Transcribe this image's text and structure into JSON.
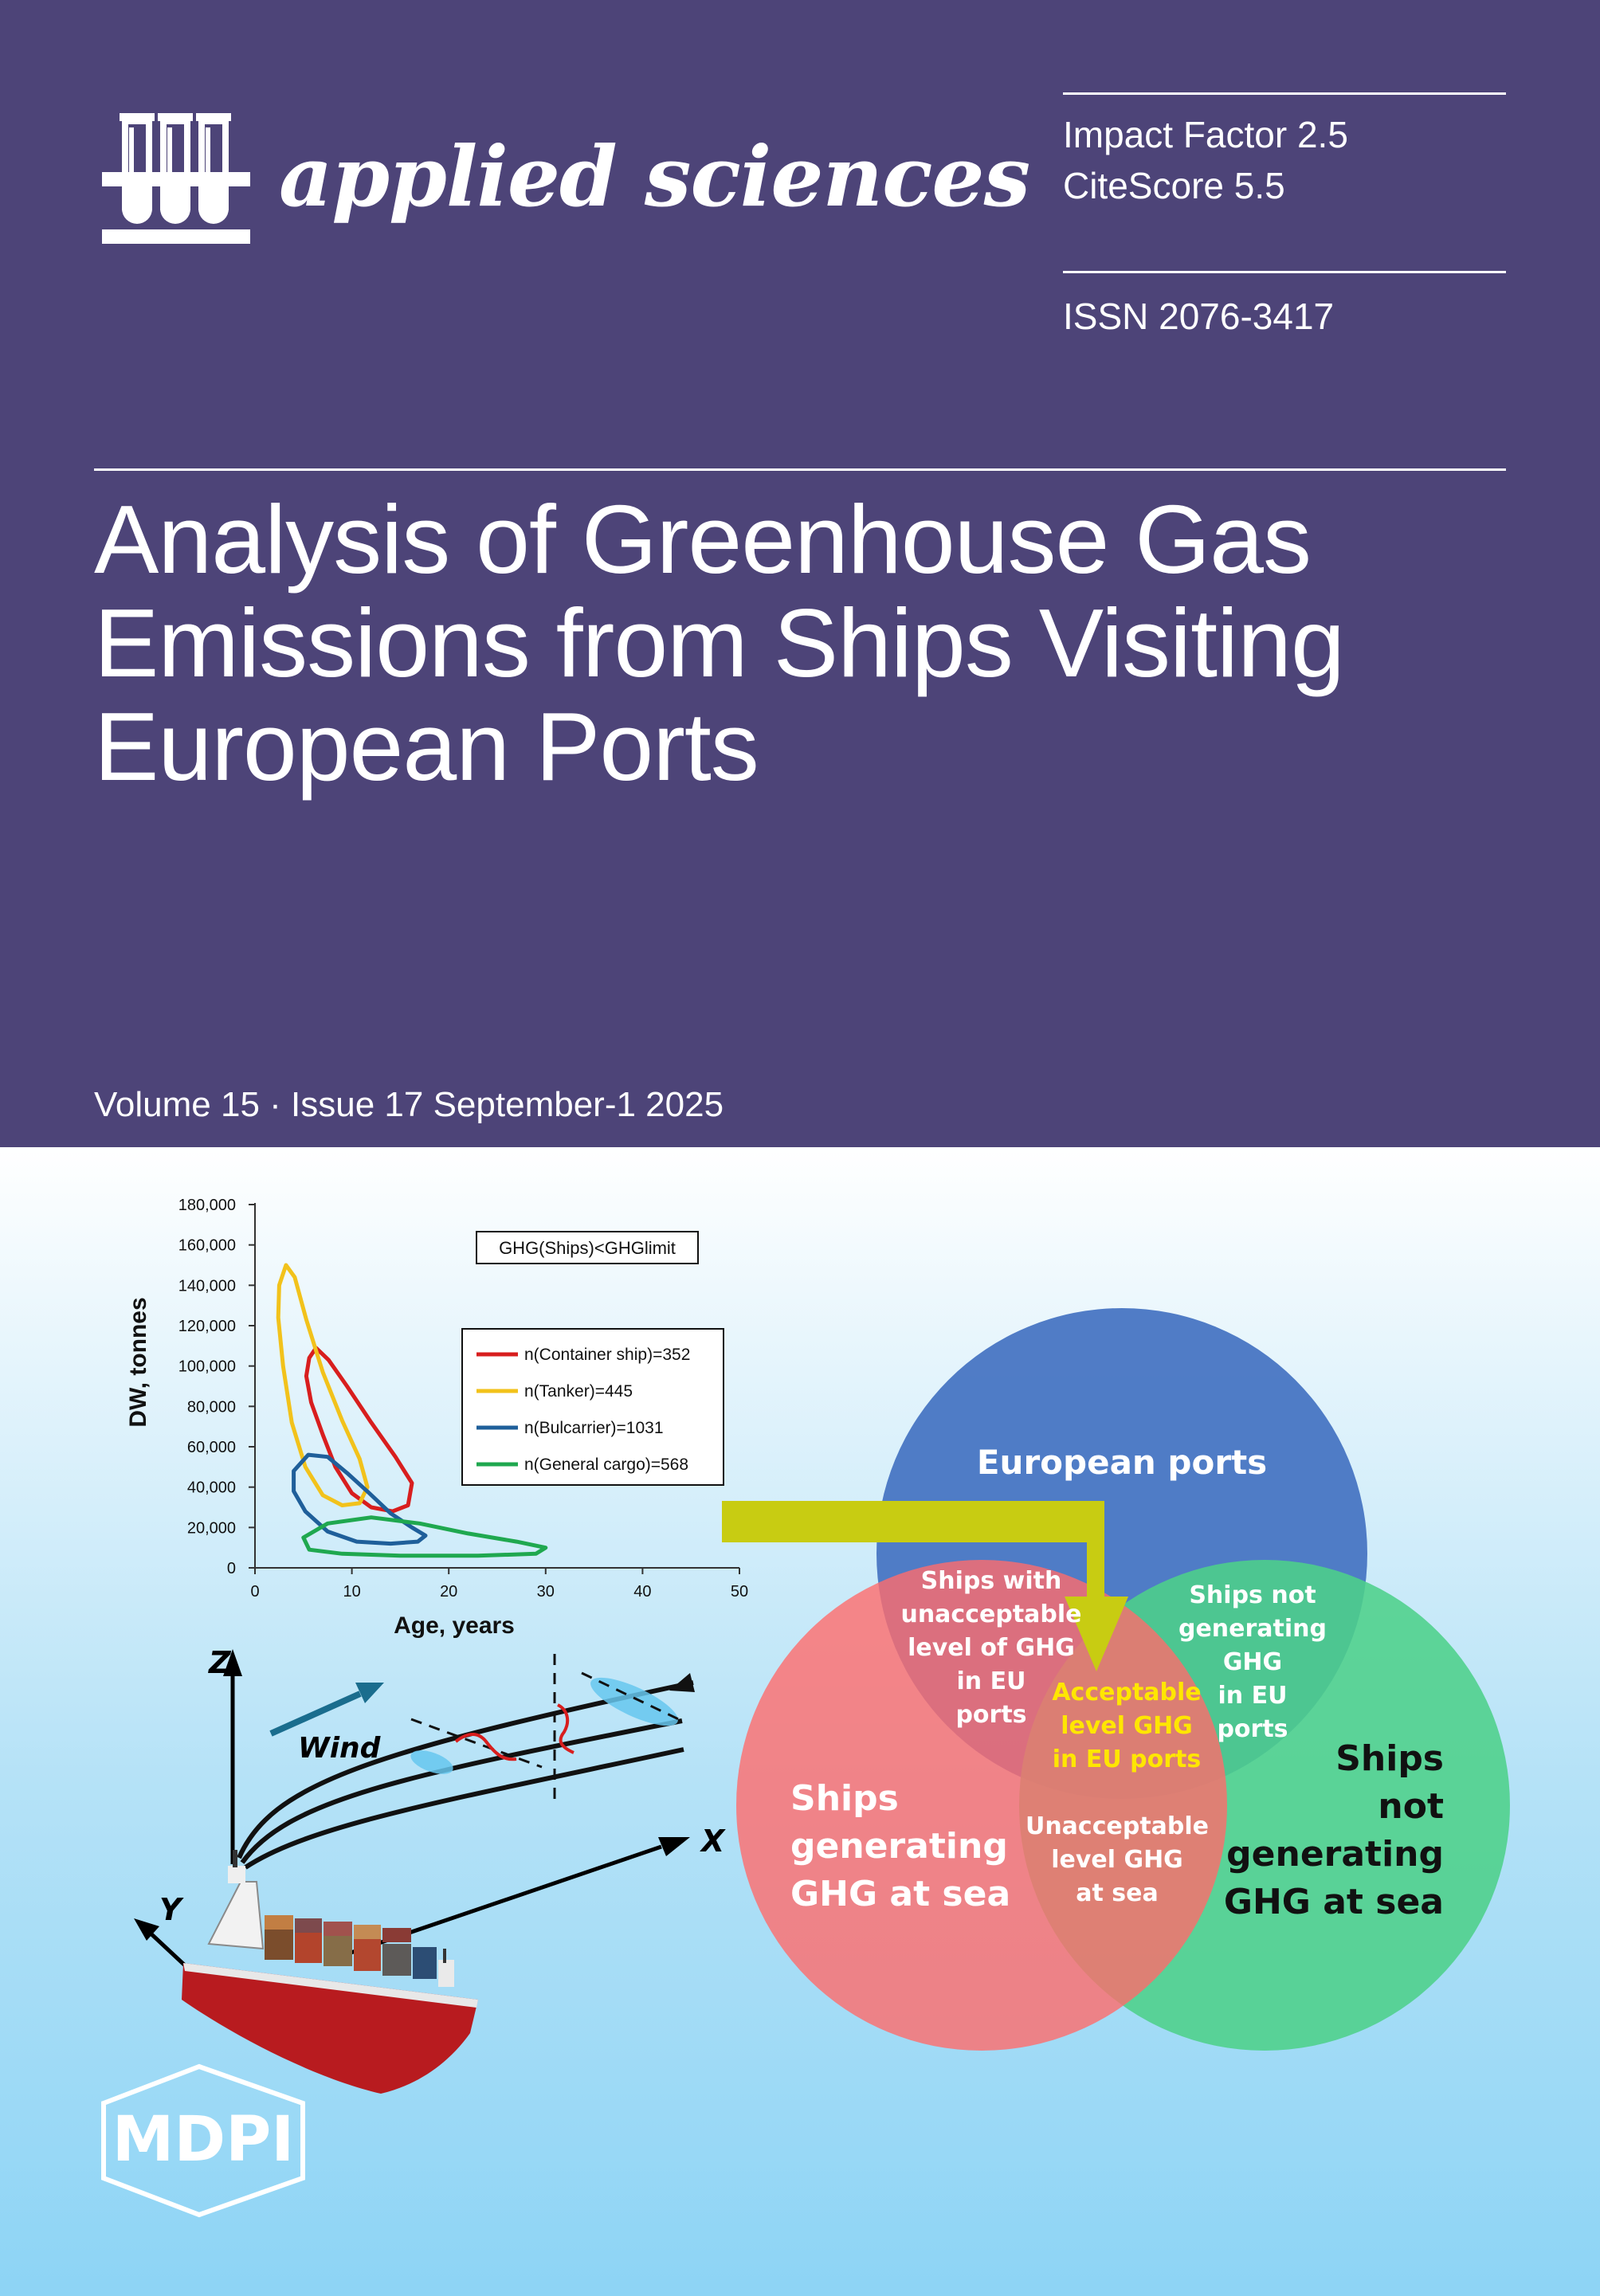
{
  "journal": {
    "name": "applied sciences",
    "publisher": "MDPI"
  },
  "metrics": {
    "impact_factor": "Impact Factor 2.5",
    "citescore": "CiteScore 5.5",
    "issn": "ISSN 2076-3417"
  },
  "article": {
    "title_lines": [
      "Analysis of Greenhouse Gas",
      "Emissions from Ships Visiting",
      "European Ports"
    ]
  },
  "issue": "Volume 15 · Issue 17 September-1 2025",
  "colors": {
    "header_bg": "#4d4478",
    "container": "#d81e1e",
    "tanker": "#f2c21b",
    "bulcarrier": "#1f5f9a",
    "general_cargo": "#1fa84f",
    "venn_blue": "#4a78c4",
    "venn_red": "#ff6b6b",
    "venn_green": "#4dd08a",
    "arrow": "#c8cc12"
  },
  "chart_data": {
    "type": "line",
    "annotation": "GHG(Ships)<GHGlimit",
    "xlabel": "Age, years",
    "ylabel": "DW, tonnes",
    "xlim": [
      0,
      50
    ],
    "ylim": [
      0,
      180000
    ],
    "x_ticks": [
      "0",
      "10",
      "20",
      "30",
      "40",
      "50"
    ],
    "y_ticks": [
      "0",
      "20,000",
      "40,000",
      "60,000",
      "80,000",
      "100,000",
      "120,000",
      "140,000",
      "160,000",
      "180,000"
    ],
    "legend_position": "right",
    "series": [
      {
        "name": "n(Container ship)=352",
        "color": "#d81e1e",
        "points": [
          [
            5.6,
            104000
          ],
          [
            6.3,
            109000
          ],
          [
            7.6,
            103000
          ],
          [
            9.5,
            90000
          ],
          [
            12.0,
            72000
          ],
          [
            14.5,
            55000
          ],
          [
            16.2,
            42000
          ],
          [
            15.8,
            31000
          ],
          [
            14.2,
            28000
          ],
          [
            12.0,
            30000
          ],
          [
            10.0,
            37000
          ],
          [
            8.3,
            50000
          ],
          [
            7.0,
            66000
          ],
          [
            5.8,
            82000
          ],
          [
            5.3,
            95000
          ],
          [
            5.6,
            104000
          ]
        ]
      },
      {
        "name": "n(Tanker)=445",
        "color": "#f2c21b",
        "points": [
          [
            2.5,
            140000
          ],
          [
            3.2,
            150000
          ],
          [
            4.1,
            144000
          ],
          [
            5.3,
            123000
          ],
          [
            7.0,
            97000
          ],
          [
            9.0,
            73000
          ],
          [
            10.8,
            54000
          ],
          [
            11.6,
            40000
          ],
          [
            10.8,
            32000
          ],
          [
            9.0,
            31000
          ],
          [
            7.0,
            36000
          ],
          [
            5.2,
            50000
          ],
          [
            3.8,
            72000
          ],
          [
            2.9,
            100000
          ],
          [
            2.4,
            124000
          ],
          [
            2.5,
            140000
          ]
        ]
      },
      {
        "name": "n(Bulcarrier)=1031",
        "color": "#1f5f9a",
        "points": [
          [
            4.0,
            48000
          ],
          [
            5.5,
            56000
          ],
          [
            7.5,
            55000
          ],
          [
            9.5,
            47000
          ],
          [
            11.8,
            37000
          ],
          [
            14.0,
            27000
          ],
          [
            16.2,
            20000
          ],
          [
            17.6,
            16000
          ],
          [
            16.8,
            13000
          ],
          [
            14.0,
            12000
          ],
          [
            10.5,
            13000
          ],
          [
            7.5,
            18000
          ],
          [
            5.2,
            28000
          ],
          [
            4.0,
            38000
          ],
          [
            4.0,
            48000
          ]
        ]
      },
      {
        "name": "n(General cargo)=568",
        "color": "#1fa84f",
        "points": [
          [
            5.0,
            15000
          ],
          [
            7.5,
            22000
          ],
          [
            12.0,
            25000
          ],
          [
            17.0,
            22000
          ],
          [
            22.0,
            17000
          ],
          [
            27.0,
            13000
          ],
          [
            30.0,
            10000
          ],
          [
            29.0,
            7000
          ],
          [
            23.0,
            6000
          ],
          [
            15.0,
            6000
          ],
          [
            9.0,
            7000
          ],
          [
            5.6,
            9000
          ],
          [
            5.0,
            15000
          ]
        ]
      }
    ]
  },
  "diagram": {
    "wind_label": "Wind",
    "axis_labels": {
      "z": "Z",
      "x": "X",
      "y": "Y"
    },
    "venn": {
      "european_ports": "European ports",
      "ships_generating_ghg_at_sea": [
        "Ships",
        "generating",
        "GHG at sea"
      ],
      "ships_not_generating_ghg_at_sea": [
        "Ships",
        "not",
        "generating",
        "GHG at sea"
      ],
      "ships_unacceptable_eu": [
        "Ships with",
        "unacceptable",
        "level of GHG",
        "in EU",
        "ports"
      ],
      "ships_not_generating_eu": [
        "Ships not",
        "generating",
        "GHG",
        "in EU",
        "ports"
      ],
      "acceptable_center": [
        "Acceptable",
        "level GHG",
        "in EU ports"
      ],
      "unacceptable_sea": [
        "Unacceptable",
        "level GHG",
        "at sea"
      ]
    }
  }
}
